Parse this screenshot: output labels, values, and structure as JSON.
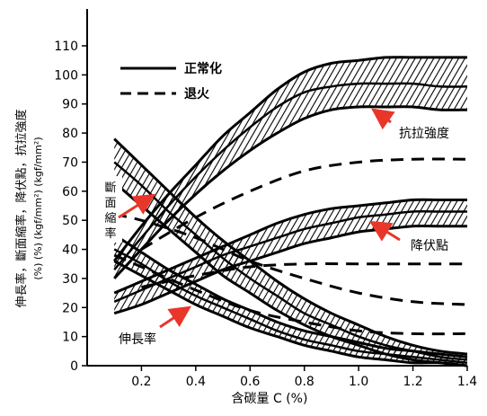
{
  "chart_data": {
    "type": "line",
    "x_range": [
      0,
      1.4
    ],
    "y_range": [
      0,
      110
    ],
    "x_ticks": [
      0.2,
      0.4,
      0.6,
      0.8,
      1.0,
      1.2,
      1.4
    ],
    "x_tick_labels": [
      "0.2",
      "0.4",
      "0.6",
      "0.8",
      "1.0",
      "1.2",
      "1.4"
    ],
    "y_ticks": [
      0,
      10,
      20,
      30,
      40,
      50,
      60,
      70,
      80,
      90,
      100,
      110
    ],
    "y_tick_labels": [
      "0",
      "10",
      "20",
      "30",
      "40",
      "50",
      "60",
      "70",
      "80",
      "90",
      "100",
      "110"
    ],
    "xlabel": "含碳量 C (%)",
    "ylabel_lines": [
      "伸長率，斷面縮率，降伏點，抗拉強度",
      "(%)         (%)    (kgf/mm²) (kgf/mm²)"
    ],
    "legend": [
      {
        "label": "正常化",
        "style": "solid"
      },
      {
        "label": "退火",
        "style": "dashed"
      }
    ],
    "annotations": [
      {
        "id": "tensile",
        "text": "抗拉強度"
      },
      {
        "id": "yield",
        "text": "降伏點"
      },
      {
        "id": "reduction",
        "text": "斷面縮率"
      },
      {
        "id": "elongation",
        "text": "伸長率"
      }
    ],
    "normalized_bands": [
      {
        "name": "抗拉強度",
        "x": [
          0.1,
          0.2,
          0.3,
          0.4,
          0.5,
          0.6,
          0.7,
          0.8,
          0.9,
          1.0,
          1.1,
          1.2,
          1.3,
          1.4
        ],
        "upper": [
          36,
          48,
          59,
          69,
          79,
          87,
          95,
          101,
          104,
          105,
          106,
          106,
          106,
          106
        ],
        "lower": [
          30,
          40,
          50,
          59,
          67,
          74,
          80,
          85,
          88,
          89,
          89,
          89,
          88,
          88
        ],
        "mid": [
          33,
          44,
          55,
          65,
          74,
          82,
          89,
          94,
          96,
          97,
          97,
          97,
          96,
          96
        ]
      },
      {
        "name": "降伏點",
        "x": [
          0.1,
          0.2,
          0.3,
          0.4,
          0.5,
          0.6,
          0.7,
          0.8,
          0.9,
          1.0,
          1.1,
          1.2,
          1.3,
          1.4
        ],
        "upper": [
          25,
          29,
          33,
          37,
          41,
          45,
          49,
          52,
          54,
          55,
          56,
          57,
          57,
          57
        ],
        "lower": [
          18,
          21,
          25,
          29,
          33,
          36,
          39,
          42,
          44,
          46,
          47,
          48,
          48,
          48
        ],
        "mid": [
          22,
          26,
          30,
          34,
          38,
          41,
          44,
          47,
          49,
          51,
          52,
          53,
          53,
          53
        ]
      },
      {
        "name": "斷面縮率",
        "x": [
          0.1,
          0.2,
          0.3,
          0.4,
          0.5,
          0.6,
          0.7,
          0.8,
          0.9,
          1.0,
          1.1,
          1.2,
          1.3,
          1.4
        ],
        "upper": [
          78,
          69,
          60,
          51,
          43,
          36,
          29,
          23,
          18,
          14,
          10,
          7,
          5,
          4
        ],
        "lower": [
          63,
          55,
          47,
          39,
          31,
          25,
          19,
          14,
          10,
          7,
          4,
          2,
          1,
          0
        ],
        "mid": [
          70,
          62,
          53,
          45,
          37,
          30,
          24,
          18,
          14,
          10,
          7,
          5,
          3,
          2
        ]
      },
      {
        "name": "伸長率",
        "x": [
          0.1,
          0.2,
          0.3,
          0.4,
          0.5,
          0.6,
          0.7,
          0.8,
          0.9,
          1.0,
          1.1,
          1.2,
          1.3,
          1.4
        ],
        "upper": [
          45,
          39,
          33,
          28,
          23,
          19,
          15,
          12,
          10,
          8,
          6,
          5,
          4,
          3
        ],
        "lower": [
          36,
          31,
          26,
          21,
          17,
          13,
          10,
          7,
          5,
          3,
          2,
          1,
          1,
          0
        ],
        "mid": [
          40,
          35,
          29,
          24,
          20,
          16,
          12,
          9,
          7,
          5,
          4,
          3,
          2,
          1
        ]
      }
    ],
    "annealed_series": [
      {
        "name": "抗拉強度",
        "x": [
          0.2,
          0.4,
          0.6,
          0.8,
          1.0,
          1.2,
          1.4
        ],
        "y": [
          40,
          51,
          60,
          67,
          70,
          71,
          71
        ]
      },
      {
        "name": "降伏點",
        "x": [
          0.2,
          0.4,
          0.6,
          0.8,
          1.0,
          1.2,
          1.4
        ],
        "y": [
          27,
          31,
          34,
          35,
          35,
          35,
          35
        ]
      },
      {
        "name": "斷面縮率",
        "x": [
          0.1,
          0.2,
          0.4,
          0.6,
          0.8,
          1.0,
          1.2,
          1.4
        ],
        "y": [
          52,
          50,
          44,
          36,
          30,
          25,
          22,
          21
        ]
      },
      {
        "name": "伸長率",
        "x": [
          0.1,
          0.2,
          0.4,
          0.6,
          0.8,
          1.0,
          1.2,
          1.4
        ],
        "y": [
          38,
          34,
          26,
          19,
          15,
          12,
          11,
          11
        ]
      }
    ],
    "colors": {
      "axis": "#000000",
      "band": "#000000",
      "arrow": "#e8362a"
    }
  }
}
